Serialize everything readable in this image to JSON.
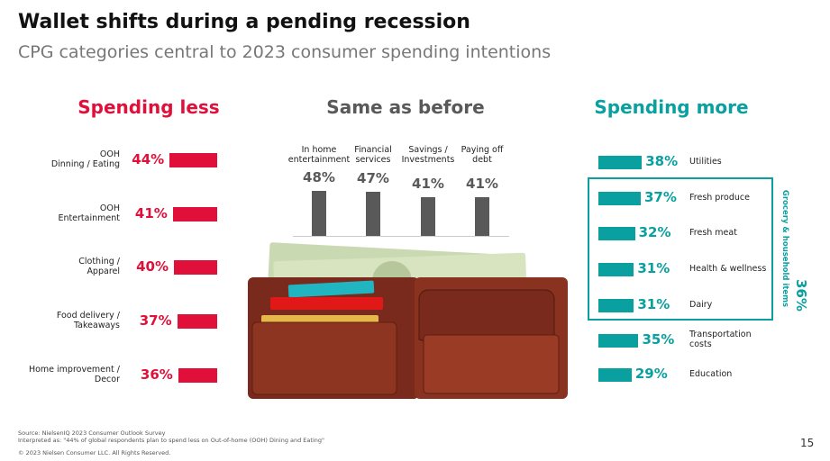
{
  "title": "Wallet shifts during a pending recession",
  "subtitle": "CPG categories central to 2023 consumer spending intentions",
  "source": "Source: NielsenIQ 2023 Consumer Outlook Survey\nInterpreted as: \"44% of global respondents plan to spend less on Out-of-home (OOH) Dining and Eating\"",
  "copyright": "© 2023 Nielsen Consumer LLC. All Rights Reserved.",
  "page_number": "15",
  "chart_data": [
    {
      "type": "bar",
      "title": "Spending less",
      "color": "#e0103a",
      "categories": [
        "OOH\nDinning / Eating",
        "OOH\nEntertainment",
        "Clothing /\nApparel",
        "Food delivery /\nTakeaways",
        "Home improvement /\nDecor"
      ],
      "values": [
        44,
        41,
        40,
        37,
        36
      ],
      "value_labels": [
        "44%",
        "41%",
        "40%",
        "37%",
        "36%"
      ]
    },
    {
      "type": "bar",
      "title": "Same as before",
      "color": "#595959",
      "categories": [
        "In home\nentertainment",
        "Financial\nservices",
        "Savings /\nInvestments",
        "Paying off\ndebt"
      ],
      "values": [
        48,
        47,
        41,
        41
      ],
      "value_labels": [
        "48%",
        "47%",
        "41%",
        "41%"
      ]
    },
    {
      "type": "bar",
      "title": "Spending more",
      "color": "#0aa0a0",
      "categories": [
        "Utilities",
        "Fresh produce",
        "Fresh meat",
        "Health & wellness",
        "Dairy",
        "Transportation\ncosts",
        "Education"
      ],
      "values": [
        38,
        37,
        32,
        31,
        31,
        35,
        29
      ],
      "value_labels": [
        "38%",
        "37%",
        "32%",
        "31%",
        "31%",
        "35%",
        "29%"
      ],
      "group": {
        "label": "Grocery & household items",
        "value": 36,
        "value_label": "36%"
      }
    }
  ]
}
